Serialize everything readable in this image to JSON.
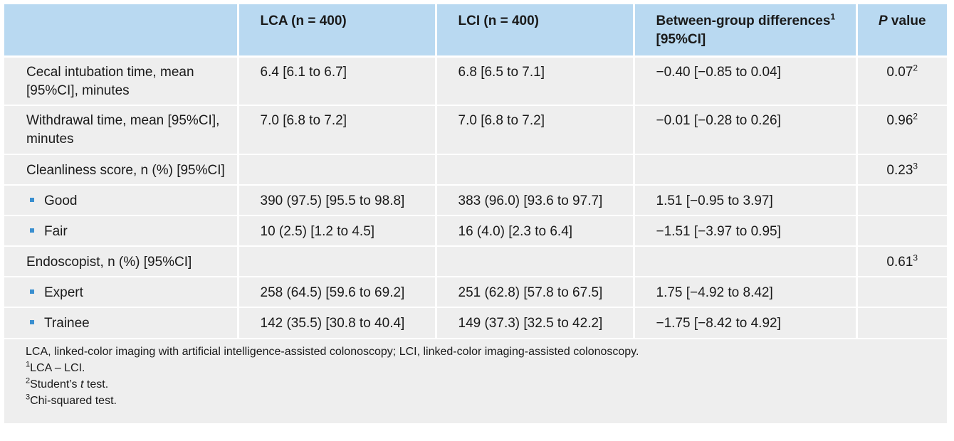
{
  "header": {
    "col1": "",
    "col2": "LCA (n = 400)",
    "col3": "LCI (n = 400)",
    "col4_line1": "Between-group differences",
    "col4_sup": "1",
    "col4_line2": "[95%CI]",
    "col5_italic": "P",
    "col5_rest": " value"
  },
  "rows": [
    {
      "label": "Cecal intubation time, mean [95%CI], minutes",
      "lca": "6.4 [6.1 to 6.7]",
      "lci": "6.8 [6.5 to 7.1]",
      "diff": "−0.40 [−0.85 to 0.04]",
      "p": "0.07",
      "p_sup": "2"
    },
    {
      "label": "Withdrawal time, mean [95%CI], minutes",
      "lca": "7.0 [6.8 to 7.2]",
      "lci": "7.0 [6.8 to 7.2]",
      "diff": "−0.01 [−0.28 to 0.26]",
      "p": "0.96",
      "p_sup": "2"
    },
    {
      "label": "Cleanliness score, n (%) [95%CI]",
      "lca": "",
      "lci": "",
      "diff": "",
      "p": "0.23",
      "p_sup": "3"
    },
    {
      "label": "Good",
      "lca": "390 (97.5) [95.5 to 98.8]",
      "lci": "383 (96.0) [93.6 to 97.7]",
      "diff": "1.51 [−0.95 to 3.97]",
      "p": "",
      "p_sup": ""
    },
    {
      "label": "Fair",
      "lca": "10 (2.5) [1.2 to 4.5]",
      "lci": "16 (4.0) [2.3 to 6.4]",
      "diff": "−1.51 [−3.97 to 0.95]",
      "p": "",
      "p_sup": ""
    },
    {
      "label": "Endoscopist, n (%) [95%CI]",
      "lca": "",
      "lci": "",
      "diff": "",
      "p": "0.61",
      "p_sup": "3"
    },
    {
      "label": "Expert",
      "lca": "258 (64.5) [59.6 to 69.2]",
      "lci": "251 (62.8) [57.8 to 67.5]",
      "diff": "1.75 [−4.92 to 8.42]",
      "p": "",
      "p_sup": ""
    },
    {
      "label": "Trainee",
      "lca": "142 (35.5) [30.8 to 40.4]",
      "lci": "149 (37.3) [32.5 to 42.2]",
      "diff": "−1.75 [−8.42 to 4.92]",
      "p": "",
      "p_sup": ""
    }
  ],
  "footnotes": {
    "abbrev": "LCA, linked-color imaging with artificial intelligence-assisted colonoscopy; LCI, linked-color imaging-assisted colonoscopy.",
    "n1_sup": "1",
    "n1_text": "LCA – LCI.",
    "n2_sup": "2",
    "n2_text_a": "Student’s ",
    "n2_text_it": "t",
    "n2_text_b": " test.",
    "n3_sup": "3",
    "n3_text": "Chi-squared test."
  },
  "colors": {
    "header_bg": "#b9d9f1",
    "row_bg": "#eeeeee",
    "bullet": "#3a8fd0"
  }
}
